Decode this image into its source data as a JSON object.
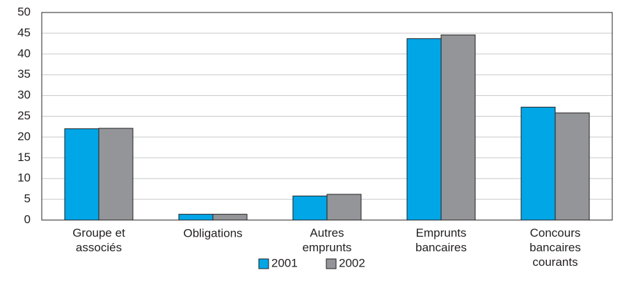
{
  "chart_data": {
    "type": "bar",
    "categories": [
      "Groupe et\nassociés",
      "Obligations",
      "Autres\nemprunts",
      "Emprunts\nbancaires",
      "Concours\nbancaires\ncourants"
    ],
    "series": [
      {
        "name": "2001",
        "color": "#00a6e6",
        "values": [
          22,
          1.4,
          5.8,
          43.7,
          27.2
        ]
      },
      {
        "name": "2002",
        "color": "#939598",
        "values": [
          22.1,
          1.4,
          6.2,
          44.6,
          25.8
        ]
      }
    ],
    "ylim": [
      0,
      50
    ],
    "yticks": [
      0,
      5,
      10,
      15,
      20,
      25,
      30,
      35,
      40,
      45,
      50
    ],
    "grid": true,
    "legend": "bottom"
  }
}
